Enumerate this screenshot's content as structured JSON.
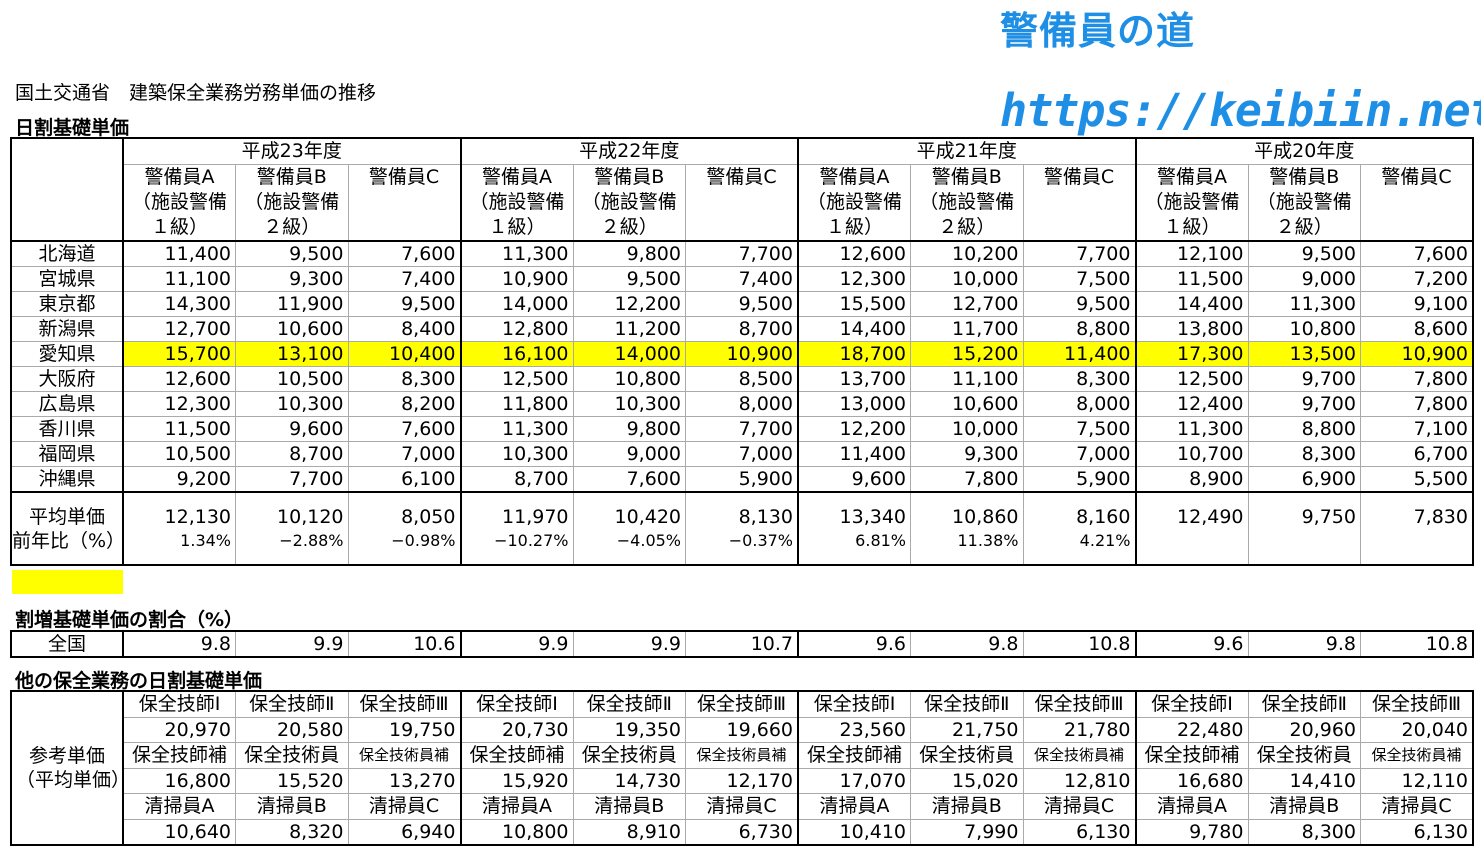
{
  "brand": "警備員の道",
  "url": "https://keibiin.net/",
  "subtitle": "国土交通省　建築保全業務労務単価の推移",
  "section1": "日割基礎単価",
  "years": [
    "平成23年度",
    "平成22年度",
    "平成21年度",
    "平成20年度"
  ],
  "col_headers": [
    [
      "警備員A",
      "（施設警備",
      "１級）"
    ],
    [
      "警備員B",
      "（施設警備",
      "２級）"
    ],
    [
      "",
      "警備員C",
      ""
    ]
  ],
  "rows": [
    {
      "pref": "北海道",
      "values": [
        "11,400",
        "9,500",
        "7,600",
        "11,300",
        "9,800",
        "7,700",
        "12,600",
        "10,200",
        "7,700",
        "12,100",
        "9,500",
        "7,600"
      ]
    },
    {
      "pref": "宮城県",
      "values": [
        "11,100",
        "9,300",
        "7,400",
        "10,900",
        "9,500",
        "7,400",
        "12,300",
        "10,000",
        "7,500",
        "11,500",
        "9,000",
        "7,200"
      ]
    },
    {
      "pref": "東京都",
      "values": [
        "14,300",
        "11,900",
        "9,500",
        "14,000",
        "12,200",
        "9,500",
        "15,500",
        "12,700",
        "9,500",
        "14,400",
        "11,300",
        "9,100"
      ]
    },
    {
      "pref": "新潟県",
      "values": [
        "12,700",
        "10,600",
        "8,400",
        "12,800",
        "11,200",
        "8,700",
        "14,400",
        "11,700",
        "8,800",
        "13,800",
        "10,800",
        "8,600"
      ]
    },
    {
      "pref": "愛知県",
      "highlight": true,
      "values": [
        "15,700",
        "13,100",
        "10,400",
        "16,100",
        "14,000",
        "10,900",
        "18,700",
        "15,200",
        "11,400",
        "17,300",
        "13,500",
        "10,900"
      ]
    },
    {
      "pref": "大阪府",
      "values": [
        "12,600",
        "10,500",
        "8,300",
        "12,500",
        "10,800",
        "8,500",
        "13,700",
        "11,100",
        "8,300",
        "12,500",
        "9,700",
        "7,800"
      ]
    },
    {
      "pref": "広島県",
      "values": [
        "12,300",
        "10,300",
        "8,200",
        "11,800",
        "10,300",
        "8,000",
        "13,000",
        "10,600",
        "8,000",
        "12,400",
        "9,700",
        "7,800"
      ]
    },
    {
      "pref": "香川県",
      "values": [
        "11,500",
        "9,600",
        "7,600",
        "11,300",
        "9,800",
        "7,700",
        "12,200",
        "10,000",
        "7,500",
        "11,300",
        "8,800",
        "7,100"
      ]
    },
    {
      "pref": "福岡県",
      "values": [
        "10,500",
        "8,700",
        "7,000",
        "10,300",
        "9,000",
        "7,000",
        "11,400",
        "9,300",
        "7,000",
        "10,700",
        "8,300",
        "6,700"
      ]
    },
    {
      "pref": "沖縄県",
      "values": [
        "9,200",
        "7,700",
        "6,100",
        "8,700",
        "7,600",
        "5,900",
        "9,600",
        "7,800",
        "5,900",
        "8,900",
        "6,900",
        "5,500"
      ]
    }
  ],
  "average": {
    "label": "平均単価",
    "change_label": "前年比（%）",
    "values": [
      "12,130",
      "10,120",
      "8,050",
      "11,970",
      "10,420",
      "8,130",
      "13,340",
      "10,860",
      "8,160",
      "12,490",
      "9,750",
      "7,830"
    ],
    "changes": [
      "1.34%",
      "−2.88%",
      "−0.98%",
      "−10.27%",
      "−4.05%",
      "−0.37%",
      "6.81%",
      "11.38%",
      "4.21%",
      "",
      "",
      ""
    ]
  },
  "highlight_color": "#ffff00",
  "section2": "割増基礎単価の割合（%）",
  "premium": {
    "label": "全国",
    "values": [
      "9.8",
      "9.9",
      "10.6",
      "9.9",
      "9.9",
      "10.7",
      "9.6",
      "9.8",
      "10.8",
      "9.6",
      "9.8",
      "10.8"
    ]
  },
  "section3": "他の保全業務の日割基礎単価",
  "other": {
    "label": [
      "参考単価",
      "（平均単価）"
    ],
    "groups": [
      {
        "titles": [
          "保全技師Ⅰ",
          "保全技師Ⅱ",
          "保全技師Ⅲ"
        ],
        "values": [
          "20,970",
          "20,580",
          "19,750",
          "20,730",
          "19,350",
          "19,660",
          "23,560",
          "21,750",
          "21,780",
          "22,480",
          "20,960",
          "20,040"
        ]
      },
      {
        "titles": [
          "保全技師補",
          "保全技術員",
          "保全技術員補"
        ],
        "values": [
          "16,800",
          "15,520",
          "13,270",
          "15,920",
          "14,730",
          "12,170",
          "17,070",
          "15,020",
          "12,810",
          "16,680",
          "14,410",
          "12,110"
        ]
      },
      {
        "titles": [
          "清掃員A",
          "清掃員B",
          "清掃員C"
        ],
        "values": [
          "10,640",
          "8,320",
          "6,940",
          "10,800",
          "8,910",
          "6,730",
          "10,410",
          "7,990",
          "6,130",
          "9,780",
          "8,300",
          "6,130"
        ]
      }
    ]
  }
}
